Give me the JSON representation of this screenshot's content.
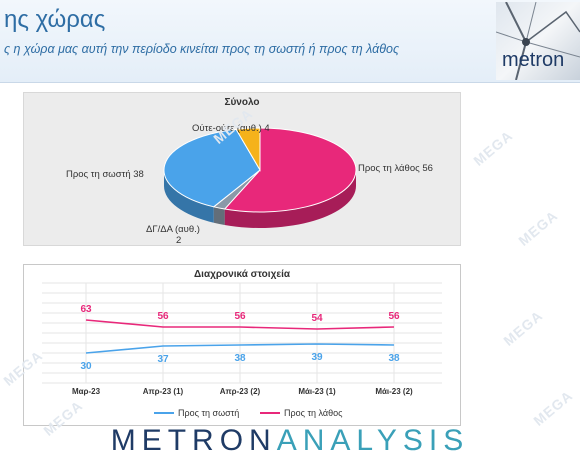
{
  "header": {
    "title": "ης χώρας",
    "subtitle": "ς η χώρα μας αυτή την περίοδο κινείται προς τη σωστή ή προς τη λάθος",
    "logo_text": "metron"
  },
  "watermark": "MEGA",
  "footer": {
    "brand_part1": "METRON",
    "brand_part2": "ANALYSIS"
  },
  "colors": {
    "right": "#4aa3ea",
    "wrong": "#e8287a",
    "neither": "#f5b21b",
    "dkna": "#8a99a8"
  },
  "chart_data": [
    {
      "type": "pie",
      "title": "Σύνολο",
      "slices": [
        {
          "label": "Προς τη λάθος 56",
          "value": 56,
          "color": "#e8287a"
        },
        {
          "label": "ΔΓ/ΔΑ (αυθ.)",
          "label2": "2",
          "value": 2,
          "color": "#8a99a8"
        },
        {
          "label": "Προς τη σωστή 38",
          "value": 38,
          "color": "#4aa3ea"
        },
        {
          "label": "Ούτε-ούτε (αυθ.) 4",
          "value": 4,
          "color": "#f5b21b"
        }
      ]
    },
    {
      "type": "line",
      "title": "Διαχρονικά στοιχεία",
      "categories": [
        "Μαρ-23",
        "Απρ-23 (1)",
        "Απρ-23 (2)",
        "Μάι-23 (1)",
        "Μάι-23 (2)"
      ],
      "ylim": [
        0,
        100
      ],
      "legend_position": "bottom",
      "grid": true,
      "series": [
        {
          "name": "Προς τη σωστή",
          "values": [
            30,
            37,
            38,
            39,
            38
          ],
          "color": "#4aa3ea"
        },
        {
          "name": "Προς τη λάθος",
          "values": [
            63,
            56,
            56,
            54,
            56
          ],
          "color": "#e8287a"
        }
      ]
    }
  ]
}
